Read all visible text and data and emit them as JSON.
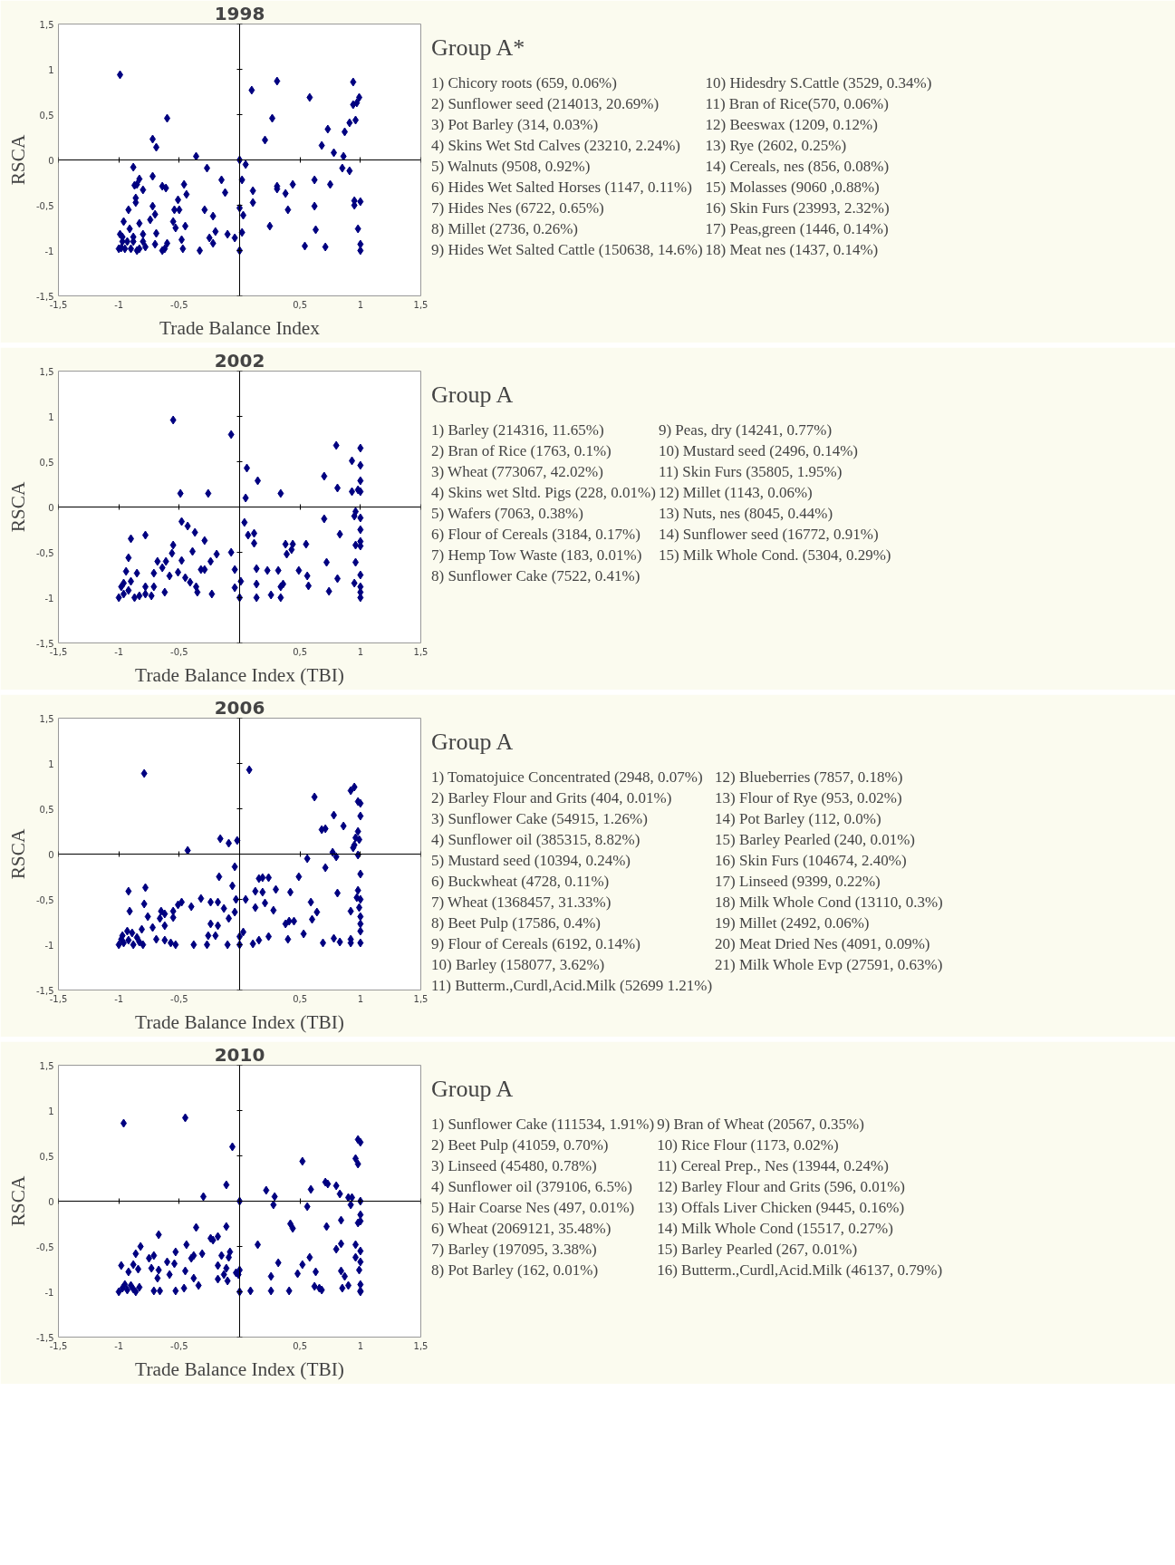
{
  "chart_data": [
    {
      "type": "scatter",
      "title": "1998",
      "subtitle": "Group A*",
      "xlabel": "Trade Balance Index",
      "ylabel": "RSCA",
      "color": "#000080",
      "marker": "diamond",
      "xlim": [
        -1.5,
        1.5
      ],
      "ylim": [
        -1.5,
        1.5
      ],
      "xticks": [
        {
          "value": -1.5,
          "label": "-1,5"
        },
        -1,
        {
          "value": -0.5,
          "label": "-0,5"
        },
        {
          "value": 0,
          "label": null
        },
        {
          "value": 0.5,
          "label": "0,5"
        },
        1,
        {
          "value": 1.5,
          "label": "1,5"
        }
      ],
      "yticks": [
        {
          "value": -1.5,
          "label": "-1,5"
        },
        -1,
        {
          "value": -0.5,
          "label": "-0,5"
        },
        0,
        {
          "value": 0.5,
          "label": "0,5"
        },
        1,
        {
          "value": 1.5,
          "label": "1,5"
        }
      ],
      "x": [
        -0.99,
        -0.6,
        -0.72,
        -0.69,
        -0.36,
        0.1,
        0.31,
        0.27,
        0.21,
        0.58,
        0.94,
        0.99,
        0.97,
        0.94,
        0.96,
        0.91,
        0.73,
        0.87,
        0.68,
        0.78,
        0.86,
        0,
        0.05,
        -0.88,
        -0.72,
        -0.83,
        -0.87,
        -0.85,
        -0.8,
        -0.86,
        -0.86,
        -0.92,
        -0.96,
        -0.91,
        -0.99,
        -1,
        -0.95,
        -0.9,
        -0.83,
        -0.78,
        -0.97,
        -0.88,
        -0.72,
        -0.7,
        -0.74,
        -0.83,
        -0.8,
        -0.69,
        -0.7,
        -0.64,
        -0.61,
        -0.46,
        -0.44,
        -0.51,
        -0.54,
        -0.5,
        -0.55,
        -0.53,
        -0.45,
        -0.48,
        -0.47,
        -0.6,
        -0.62,
        -0.64,
        -0.27,
        -0.33,
        -0.29,
        -0.22,
        -0.25,
        -0.22,
        -0.2,
        -0.15,
        -0.12,
        -0.1,
        -0.04,
        0.02,
        0,
        0.03,
        0.02,
        0,
        0.11,
        0.11,
        0.25,
        0.31,
        0.31,
        0.38,
        0.44,
        0.4,
        0.62,
        0.75,
        0.62,
        0.63,
        0.54,
        0.71,
        0.85,
        0.91,
        0.95,
        0.95,
        1.0,
        0.98,
        1.0,
        1.0,
        -0.98,
        -0.93,
        -0.88,
        -0.97,
        -0.8,
        -0.85
      ],
      "values": [
        0.94,
        0.46,
        0.23,
        0.14,
        0.04,
        0.77,
        0.87,
        0.46,
        0.22,
        0.69,
        0.86,
        0.69,
        0.63,
        0.61,
        0.44,
        0.41,
        0.34,
        0.31,
        0.16,
        0.08,
        0.04,
        0,
        -0.05,
        -0.08,
        -0.18,
        -0.21,
        -0.28,
        -0.27,
        -0.33,
        -0.42,
        -0.47,
        -0.55,
        -0.68,
        -0.76,
        -0.82,
        -0.98,
        -0.98,
        -0.98,
        -0.98,
        -0.96,
        -0.9,
        -0.9,
        -0.51,
        -0.6,
        -0.66,
        -0.7,
        -0.82,
        -0.81,
        -0.93,
        -0.29,
        -0.31,
        -0.27,
        -0.38,
        -0.44,
        -0.55,
        -0.55,
        -0.68,
        -0.75,
        -0.73,
        -0.88,
        -0.98,
        -0.92,
        -0.98,
        -1.0,
        -0.09,
        -1.0,
        -0.55,
        -0.62,
        -0.86,
        -0.92,
        -0.79,
        -0.22,
        -0.36,
        -0.82,
        -0.86,
        -0.22,
        -0.53,
        -0.61,
        -0.8,
        -1.0,
        -0.34,
        -0.47,
        -0.73,
        -0.29,
        -0.32,
        -0.37,
        -0.27,
        -0.55,
        -0.22,
        -0.27,
        -0.51,
        -0.77,
        -0.95,
        -0.96,
        -0.09,
        -0.12,
        -0.45,
        -0.5,
        -0.46,
        -0.76,
        -0.93,
        -1.0,
        -0.97,
        -0.9,
        -0.85,
        -0.85,
        -0.9,
        -1.0
      ],
      "annotations": [
        "1) Chicory roots (659, 0.06%)",
        "2) Sunflower seed (214013, 20.69%)",
        "3) Pot Barley (314, 0.03%)",
        "4) Skins Wet Std Calves (23210, 2.24%)",
        "5) Walnuts (9508, 0.92%)",
        "6) Hides Wet Salted Horses (1147, 0.11%)",
        "7) Hides Nes (6722, 0.65%)",
        "8) Millet (2736, 0.26%)",
        "9) Hides Wet Salted Cattle (150638, 14.6%)",
        "10) Hidesdry S.Cattle (3529, 0.34%)",
        "11) Bran of Rice(570, 0.06%)",
        "12) Beeswax (1209, 0.12%)",
        "13) Rye (2602, 0.25%)",
        "14) Cereals, nes (856, 0.08%)",
        "15) Molasses (9060 ,0.88%)",
        "16) Skin Furs (23993, 2.32%)",
        "17) Peas,green (1446, 0.14%)",
        "18) Meat nes (1437, 0.14%)"
      ]
    },
    {
      "type": "scatter",
      "title": "2002",
      "subtitle": "Group A",
      "xlabel": "Trade Balance Index (TBI)",
      "ylabel": "RSCA",
      "color": "#000080",
      "marker": "diamond",
      "xlim": [
        -1.5,
        1.5
      ],
      "ylim": [
        -1.5,
        1.5
      ],
      "xticks": [
        {
          "value": -1.5,
          "label": "-1,5"
        },
        -1,
        {
          "value": -0.5,
          "label": "-0,5"
        },
        {
          "value": 0,
          "label": null
        },
        {
          "value": 0.5,
          "label": "0,5"
        },
        1,
        {
          "value": 1.5,
          "label": "1,5"
        }
      ],
      "yticks": [
        {
          "value": -1.5,
          "label": "-1,5"
        },
        -1,
        {
          "value": -0.5,
          "label": "-0,5"
        },
        0,
        {
          "value": 0.5,
          "label": "0,5"
        },
        1,
        {
          "value": 1.5,
          "label": "1,5"
        }
      ],
      "x": [
        -0.55,
        -0.07,
        -0.49,
        -0.26,
        0.06,
        0.05,
        0.15,
        0.34,
        0.7,
        0.8,
        0.81,
        0.93,
        1.0,
        1.0,
        1.0,
        0.93,
        0.98,
        1.0,
        0.96,
        0.95,
        1.0,
        1.0,
        0.7,
        0.83,
        1.0,
        1.0,
        0.96,
        0.96,
        1.0,
        0.95,
        1,
        1,
        1,
        0.81,
        0.74,
        0.72,
        0.55,
        0.49,
        0.56,
        0.57,
        0.38,
        0.44,
        0.43,
        0.39,
        0.32,
        0.23,
        0.36,
        0.34,
        0.26,
        0.34,
        0.14,
        0.14,
        0.14,
        0.04,
        0.07,
        0.12,
        0.12,
        0.01,
        -0.04,
        0,
        -0.04,
        -0.07,
        -0.19,
        -0.24,
        -0.29,
        -0.37,
        -0.43,
        -0.48,
        -0.39,
        -0.55,
        -0.56,
        -0.48,
        -0.51,
        -0.58,
        -0.45,
        -0.41,
        -0.32,
        -0.29,
        -0.36,
        -0.35,
        -0.23,
        -0.61,
        -0.68,
        -0.64,
        -0.71,
        -0.78,
        -0.9,
        -0.92,
        -0.94,
        -0.85,
        -0.71,
        -0.62,
        -0.78,
        -1.0,
        -0.96,
        -0.92,
        -0.87,
        -0.83,
        -0.96,
        -0.98,
        -0.9,
        -0.78,
        -0.73
      ],
      "values": [
        0.96,
        0.8,
        0.15,
        0.15,
        0.43,
        0.1,
        0.29,
        0.15,
        0.34,
        0.68,
        0.21,
        0.51,
        0.65,
        0.46,
        0.29,
        0.17,
        0.19,
        0.17,
        -0.05,
        -0.1,
        -0.12,
        -0.25,
        -0.13,
        -0.3,
        -0.38,
        -0.43,
        -0.42,
        -0.61,
        -0.75,
        -0.84,
        -0.88,
        -0.94,
        -1.0,
        -0.79,
        -0.93,
        -0.61,
        -0.41,
        -0.7,
        -0.76,
        -0.87,
        -0.41,
        -0.41,
        -0.47,
        -0.52,
        -0.7,
        -0.7,
        -0.85,
        -0.88,
        -0.97,
        -1.0,
        -0.68,
        -0.85,
        -1.0,
        -0.17,
        -0.31,
        -0.29,
        -0.4,
        -0.82,
        -0.89,
        -1.0,
        -0.69,
        -0.5,
        -0.52,
        -0.6,
        -0.37,
        -0.28,
        -0.21,
        -0.16,
        -0.49,
        -0.42,
        -0.51,
        -0.59,
        -0.72,
        -0.76,
        -0.78,
        -0.83,
        -0.69,
        -0.69,
        -0.88,
        -0.94,
        -0.96,
        -0.6,
        -0.6,
        -0.67,
        -0.73,
        -0.31,
        -0.35,
        -0.56,
        -0.71,
        -0.73,
        -0.88,
        -0.94,
        -0.88,
        -1.0,
        -0.96,
        -0.92,
        -1.0,
        -0.98,
        -0.84,
        -0.88,
        -0.82,
        -0.96,
        -0.98
      ],
      "annotations": [
        "1) Barley (214316, 11.65%)",
        "2) Bran of Rice (1763, 0.1%)",
        "3) Wheat (773067, 42.02%)",
        "4) Skins wet Sltd. Pigs (228, 0.01%)",
        "5) Wafers (7063, 0.38%)",
        "6) Flour of Cereals (3184, 0.17%)",
        "7) Hemp Tow Waste (183, 0.01%)",
        "8) Sunflower Cake (7522, 0.41%)",
        "9) Peas, dry (14241, 0.77%)",
        "10) Mustard seed (2496, 0.14%)",
        "11) Skin Furs (35805, 1.95%)",
        "12) Millet (1143, 0.06%)",
        "13) Nuts, nes (8045, 0.44%)",
        "14) Sunflower seed (16772, 0.91%)",
        "15) Milk Whole Cond. (5304, 0.29%)"
      ]
    },
    {
      "type": "scatter",
      "title": "2006",
      "subtitle": "Group A",
      "xlabel": "Trade Balance Index (TBI)",
      "ylabel": "RSCA",
      "color": "#000080",
      "marker": "diamond",
      "xlim": [
        -1.5,
        1.5
      ],
      "ylim": [
        -1.5,
        1.5
      ],
      "xticks": [
        {
          "value": -1.5,
          "label": "-1,5"
        },
        -1,
        {
          "value": -0.5,
          "label": "-0,5"
        },
        {
          "value": 0,
          "label": null
        },
        {
          "value": 0.5,
          "label": "0,5"
        },
        1,
        {
          "value": 1.5,
          "label": "1,5"
        }
      ],
      "yticks": [
        {
          "value": -1.5,
          "label": "-1,5"
        },
        -1,
        {
          "value": -0.5,
          "label": "-0,5"
        },
        0,
        {
          "value": 0.5,
          "label": "0,5"
        },
        1,
        {
          "value": 1.5,
          "label": "1,5"
        }
      ],
      "x": [
        -0.79,
        0.08,
        -0.43,
        -0.16,
        -0.09,
        -0.02,
        0.62,
        0.92,
        0.95,
        0.98,
        1.0,
        0.78,
        1.0,
        0.86,
        0.68,
        0.71,
        0.98,
        0.96,
        0.99,
        0.95,
        0.94,
        0.77,
        0.8,
        0.98,
        0.56,
        0.71,
        0.49,
        1.0,
        0.98,
        0.97,
        1.0,
        0.81,
        0.59,
        0.64,
        0.6,
        0.99,
        1,
        1,
        1,
        1,
        0.92,
        0.78,
        0.83,
        0.92,
        0.92,
        0.69,
        0.53,
        0.4,
        0.38,
        0.41,
        0.45,
        0.42,
        0.3,
        0.16,
        0.19,
        0.24,
        0.13,
        0.19,
        0.21,
        0.28,
        0.13,
        0.05,
        0.24,
        0.16,
        0.11,
        0.03,
        0,
        0,
        -0.04,
        -0.06,
        -0.03,
        -0.04,
        -0.17,
        -0.13,
        -0.09,
        -0.32,
        -0.24,
        -0.18,
        -0.24,
        -0.18,
        -0.26,
        -0.2,
        -0.27,
        -0.1,
        -0.38,
        -0.4,
        -0.48,
        -0.51,
        -0.55,
        -0.55,
        -0.65,
        -0.62,
        -0.66,
        -0.62,
        -0.78,
        -0.79,
        -0.76,
        -0.92,
        -0.91,
        -0.69,
        -0.62,
        -0.57,
        -0.53,
        -0.72,
        -0.81,
        -0.89,
        -1,
        -0.96,
        -0.92,
        -0.88,
        -0.83,
        -0.97,
        -0.93,
        -0.85,
        -0.8,
        -0.98
      ],
      "values": [
        0.89,
        0.93,
        0.04,
        0.17,
        0.12,
        0.15,
        0.63,
        0.7,
        0.74,
        0.58,
        0.56,
        0.43,
        0.42,
        0.31,
        0.27,
        0.28,
        0.25,
        0.18,
        0.16,
        0.1,
        0.07,
        0.02,
        -0.03,
        -0.01,
        -0.05,
        -0.15,
        -0.25,
        -0.22,
        -0.4,
        -0.48,
        -0.5,
        -0.43,
        -0.53,
        -0.64,
        -0.72,
        -0.59,
        -0.69,
        -0.77,
        -0.85,
        -0.98,
        -0.63,
        -0.93,
        -0.97,
        -0.94,
        -0.98,
        -0.98,
        -0.88,
        -0.94,
        -0.77,
        -0.74,
        -0.74,
        -0.42,
        -0.39,
        -0.27,
        -0.26,
        -0.26,
        -0.41,
        -0.42,
        -0.54,
        -0.62,
        -0.59,
        -0.5,
        -0.91,
        -0.95,
        -0.99,
        -0.86,
        -0.91,
        -1.0,
        -0.14,
        -0.35,
        -0.5,
        -0.64,
        -0.25,
        -0.6,
        -0.71,
        -0.49,
        -0.53,
        -0.53,
        -0.77,
        -0.79,
        -0.9,
        -0.9,
        -1.0,
        -1.0,
        -1.0,
        -0.58,
        -0.53,
        -0.56,
        -0.63,
        -0.7,
        -0.63,
        -0.66,
        -0.71,
        -0.79,
        -0.37,
        -0.55,
        -0.69,
        -0.41,
        -0.63,
        -0.94,
        -0.95,
        -0.98,
        -1.0,
        -0.81,
        -0.83,
        -0.87,
        -1,
        -0.98,
        -0.95,
        -1,
        -0.97,
        -0.9,
        -0.85,
        -0.92,
        -1.0,
        -0.94
      ],
      "annotations": [
        "1) Tomatojuice Concentrated (2948, 0.07%)",
        "2) Barley Flour and Grits (404, 0.01%)",
        "3) Sunflower Cake (54915, 1.26%)",
        "4) Sunflower oil (385315, 8.82%)",
        "5) Mustard seed (10394, 0.24%)",
        "6) Buckwheat (4728, 0.11%)",
        "7) Wheat (1368457, 31.33%)",
        "8) Beet Pulp (17586, 0.4%)",
        "9) Flour of Cereals (6192, 0.14%)",
        "10) Barley (158077, 3.62%)",
        "11) Butterm.,Curdl,Acid.Milk (52699 1.21%)",
        "12) Blueberries (7857, 0.18%)",
        "13) Flour of Rye (953, 0.02%)",
        "14) Pot Barley (112, 0.0%)",
        "15) Barley Pearled (240, 0.01%)",
        "16) Skin Furs (104674, 2.40%)",
        "17) Linseed (9399, 0.22%)",
        "18) Milk Whole Cond (13110, 0.3%)",
        "19) Millet (2492, 0.06%)",
        "20) Meat Dried Nes (4091, 0.09%)",
        "21) Milk Whole Evp (27591, 0.63%)"
      ]
    },
    {
      "type": "scatter",
      "title": "2010",
      "subtitle": "Group A",
      "xlabel": "Trade Balance Index (TBI)",
      "ylabel": "RSCA",
      "color": "#000080",
      "marker": "diamond",
      "xlim": [
        -1.5,
        1.5
      ],
      "ylim": [
        -1.5,
        1.5
      ],
      "xticks": [
        {
          "value": -1.5,
          "label": "-1,5"
        },
        -1,
        {
          "value": -0.5,
          "label": "-0,5"
        },
        {
          "value": 0,
          "label": null
        },
        {
          "value": 0.5,
          "label": "0,5"
        },
        1,
        {
          "value": 1.5,
          "label": "1,5"
        }
      ],
      "yticks": [
        {
          "value": -1.5,
          "label": "-1,5"
        },
        -1,
        {
          "value": -0.5,
          "label": "-0,5"
        },
        0,
        {
          "value": 0.5,
          "label": "0,5"
        },
        1,
        {
          "value": 1.5,
          "label": "1,5"
        }
      ],
      "x": [
        -0.96,
        -0.45,
        -0.06,
        -0.11,
        -0.3,
        0,
        0.22,
        0.29,
        0.28,
        0.52,
        0.59,
        0.56,
        0.71,
        0.73,
        0.8,
        0.83,
        0.9,
        0.93,
        0.92,
        0.98,
        1.0,
        0.96,
        0.98,
        1.0,
        1.0,
        1.0,
        0.98,
        0.84,
        0.72,
        0.42,
        0.44,
        0.15,
        0.84,
        0.8,
        0.96,
        1,
        0.96,
        1,
        0.58,
        0.52,
        0.48,
        0.63,
        0.32,
        0.26,
        0.84,
        0.87,
        0.99,
        0.62,
        0.66,
        0.68,
        0.85,
        0.9,
        1,
        1,
        1,
        0.41,
        0.26,
        0.09,
        0,
        0,
        -0.01,
        -0.03,
        -0.11,
        -0.08,
        -0.09,
        -0.18,
        -0.24,
        -0.22,
        -0.15,
        -0.18,
        -0.11,
        -0.13,
        -0.18,
        -0.1,
        -0.36,
        -0.31,
        -0.38,
        -0.4,
        -0.44,
        -0.53,
        -0.45,
        -0.38,
        -0.34,
        -0.46,
        -0.53,
        -0.67,
        -0.54,
        -0.6,
        -0.58,
        -0.67,
        -0.68,
        -0.73,
        -0.75,
        -0.71,
        -0.71,
        -0.66,
        -0.82,
        -0.86,
        -0.88,
        -0.92,
        -0.84,
        -0.98,
        -1,
        -0.97,
        -0.93,
        -0.9,
        -0.86,
        -0.83,
        -0.95,
        -0.88
      ],
      "values": [
        0.86,
        0.92,
        0.6,
        0.18,
        0.05,
        0,
        0.12,
        0.05,
        -0.04,
        0.44,
        0.13,
        -0.06,
        0.21,
        0.19,
        0.17,
        0.08,
        0.04,
        0.04,
        -0.04,
        0.68,
        0.65,
        0.47,
        0.41,
        0.0,
        -0.15,
        -0.22,
        -0.24,
        -0.21,
        -0.28,
        -0.25,
        -0.3,
        -0.48,
        -0.47,
        -0.53,
        -0.48,
        -0.55,
        -0.62,
        -0.67,
        -0.62,
        -0.7,
        -0.8,
        -0.78,
        -0.68,
        -0.83,
        -0.77,
        -0.83,
        -0.76,
        -0.94,
        -0.96,
        -0.98,
        -0.96,
        -0.93,
        -0.92,
        -0.99,
        -1.0,
        -0.99,
        -0.99,
        -0.99,
        -1.0,
        -0.76,
        -0.81,
        -0.79,
        -0.28,
        -0.56,
        -0.62,
        -0.39,
        -0.41,
        -0.43,
        -0.6,
        -0.71,
        -0.74,
        -0.81,
        -0.86,
        -0.88,
        -0.29,
        -0.58,
        -0.6,
        -0.63,
        -0.48,
        -0.56,
        -0.77,
        -0.85,
        -0.93,
        -0.96,
        -0.99,
        -0.37,
        -0.69,
        -0.67,
        -0.81,
        -0.76,
        -0.85,
        -0.74,
        -0.63,
        -0.6,
        -0.99,
        -0.99,
        -0.5,
        -0.58,
        -0.7,
        -0.78,
        -0.75,
        -0.71,
        -1,
        -0.96,
        -0.98,
        -0.93,
        -1.0,
        -0.95,
        -0.92,
        -0.97
      ],
      "annotations": [
        "1) Sunflower Cake (111534, 1.91%)",
        "2) Beet Pulp (41059, 0.70%)",
        "3) Linseed (45480, 0.78%)",
        "4) Sunflower oil (379106, 6.5%)",
        "5) Hair Coarse Nes (497, 0.01%)",
        "6) Wheat (2069121, 35.48%)",
        "7) Barley (197095, 3.38%)",
        "8) Pot Barley (162, 0.01%)",
        "9) Bran of Wheat (20567, 0.35%)",
        "10) Rice Flour (1173, 0.02%)",
        "11) Cereal Prep., Nes (13944, 0.24%)",
        "12) Barley Flour and Grits (596, 0.01%)",
        "13) Offals Liver Chicken (9445, 0.16%)",
        "14) Milk Whole Cond (15517, 0.27%)",
        "15) Barley Pearled (267, 0.01%)",
        "16) Butterm.,Curdl,Acid.Milk (46137, 0.79%)"
      ]
    }
  ]
}
